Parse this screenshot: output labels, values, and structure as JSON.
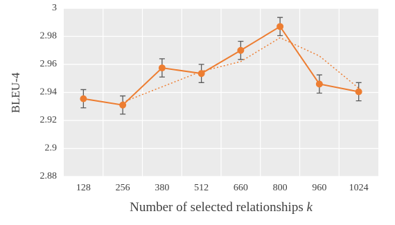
{
  "chart_data": {
    "type": "line",
    "x_label": "Number of selected relationships",
    "x_label_var": "k",
    "y_label": "BLEU-4",
    "categories": [
      "128",
      "256",
      "380",
      "512",
      "660",
      "800",
      "960",
      "1024"
    ],
    "series": [
      {
        "color": "#ed7d31",
        "style": "solid",
        "marker": true,
        "values": [
          2.9355,
          2.931,
          2.9575,
          2.9535,
          2.97,
          2.987,
          2.946,
          2.9405
        ],
        "errors": [
          0.0065,
          0.0065,
          0.0065,
          0.0065,
          0.0065,
          0.0065,
          0.0065,
          0.0065
        ]
      },
      {
        "color": "#ed7d31",
        "style": "dotted",
        "marker": false,
        "values": [
          null,
          2.933,
          2.944,
          2.955,
          2.962,
          2.979,
          2.966,
          2.943
        ]
      }
    ],
    "ylim": [
      2.88,
      3
    ],
    "yticks": [
      2.88,
      2.9,
      2.92,
      2.94,
      2.96,
      2.98,
      3
    ],
    "grid": true,
    "error_color": "#595959"
  }
}
